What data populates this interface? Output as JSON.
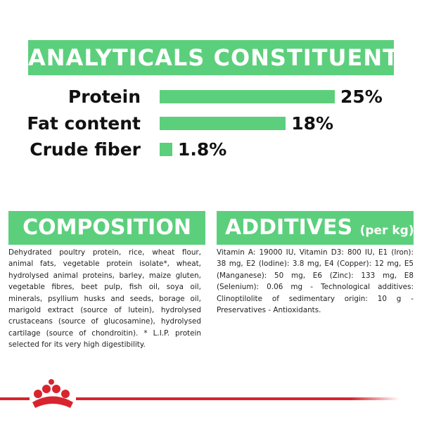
{
  "chart_data": {
    "type": "bar",
    "title": "ANALYTICALS CONSTITUENTS",
    "categories": [
      "Protein",
      "Fat content",
      "Crude fiber"
    ],
    "values": [
      25,
      18,
      1.8
    ],
    "value_labels": [
      "25%",
      "18%",
      "1.8%"
    ],
    "color": "#5ccf7c"
  },
  "composition": {
    "title": "COMPOSITION",
    "text": "Dehydrated poultry protein, rice, wheat flour, animal fats, vegetable protein isolate*, wheat, hydrolysed animal proteins, barley, maize gluten, vegetable fibres, beet pulp, fish oil, soya oil, minerals, psyllium husks and seeds, borage oil, marigold extract (source of lutein), hydrolysed crustaceans (source of glucosamine), hydrolysed cartilage (source of chondroitin). * L.I.P. protein selected for its very high digestibility."
  },
  "additives": {
    "title": "ADDITIVES",
    "subtitle": "(per kg)",
    "text": "Vitamin A: 19000 IU, Vitamin D3: 800 IU, E1 (Iron): 38 mg, E2 (Iodine): 3.8 mg, E4 (Copper): 12 mg, E5 (Manganese): 50 mg, E6 (Zinc): 133 mg, E8 (Selenium): 0.06 mg - Technological additives: Clinoptilolite of sedimentary origin: 10 g - Preservatives - Antioxidants."
  }
}
